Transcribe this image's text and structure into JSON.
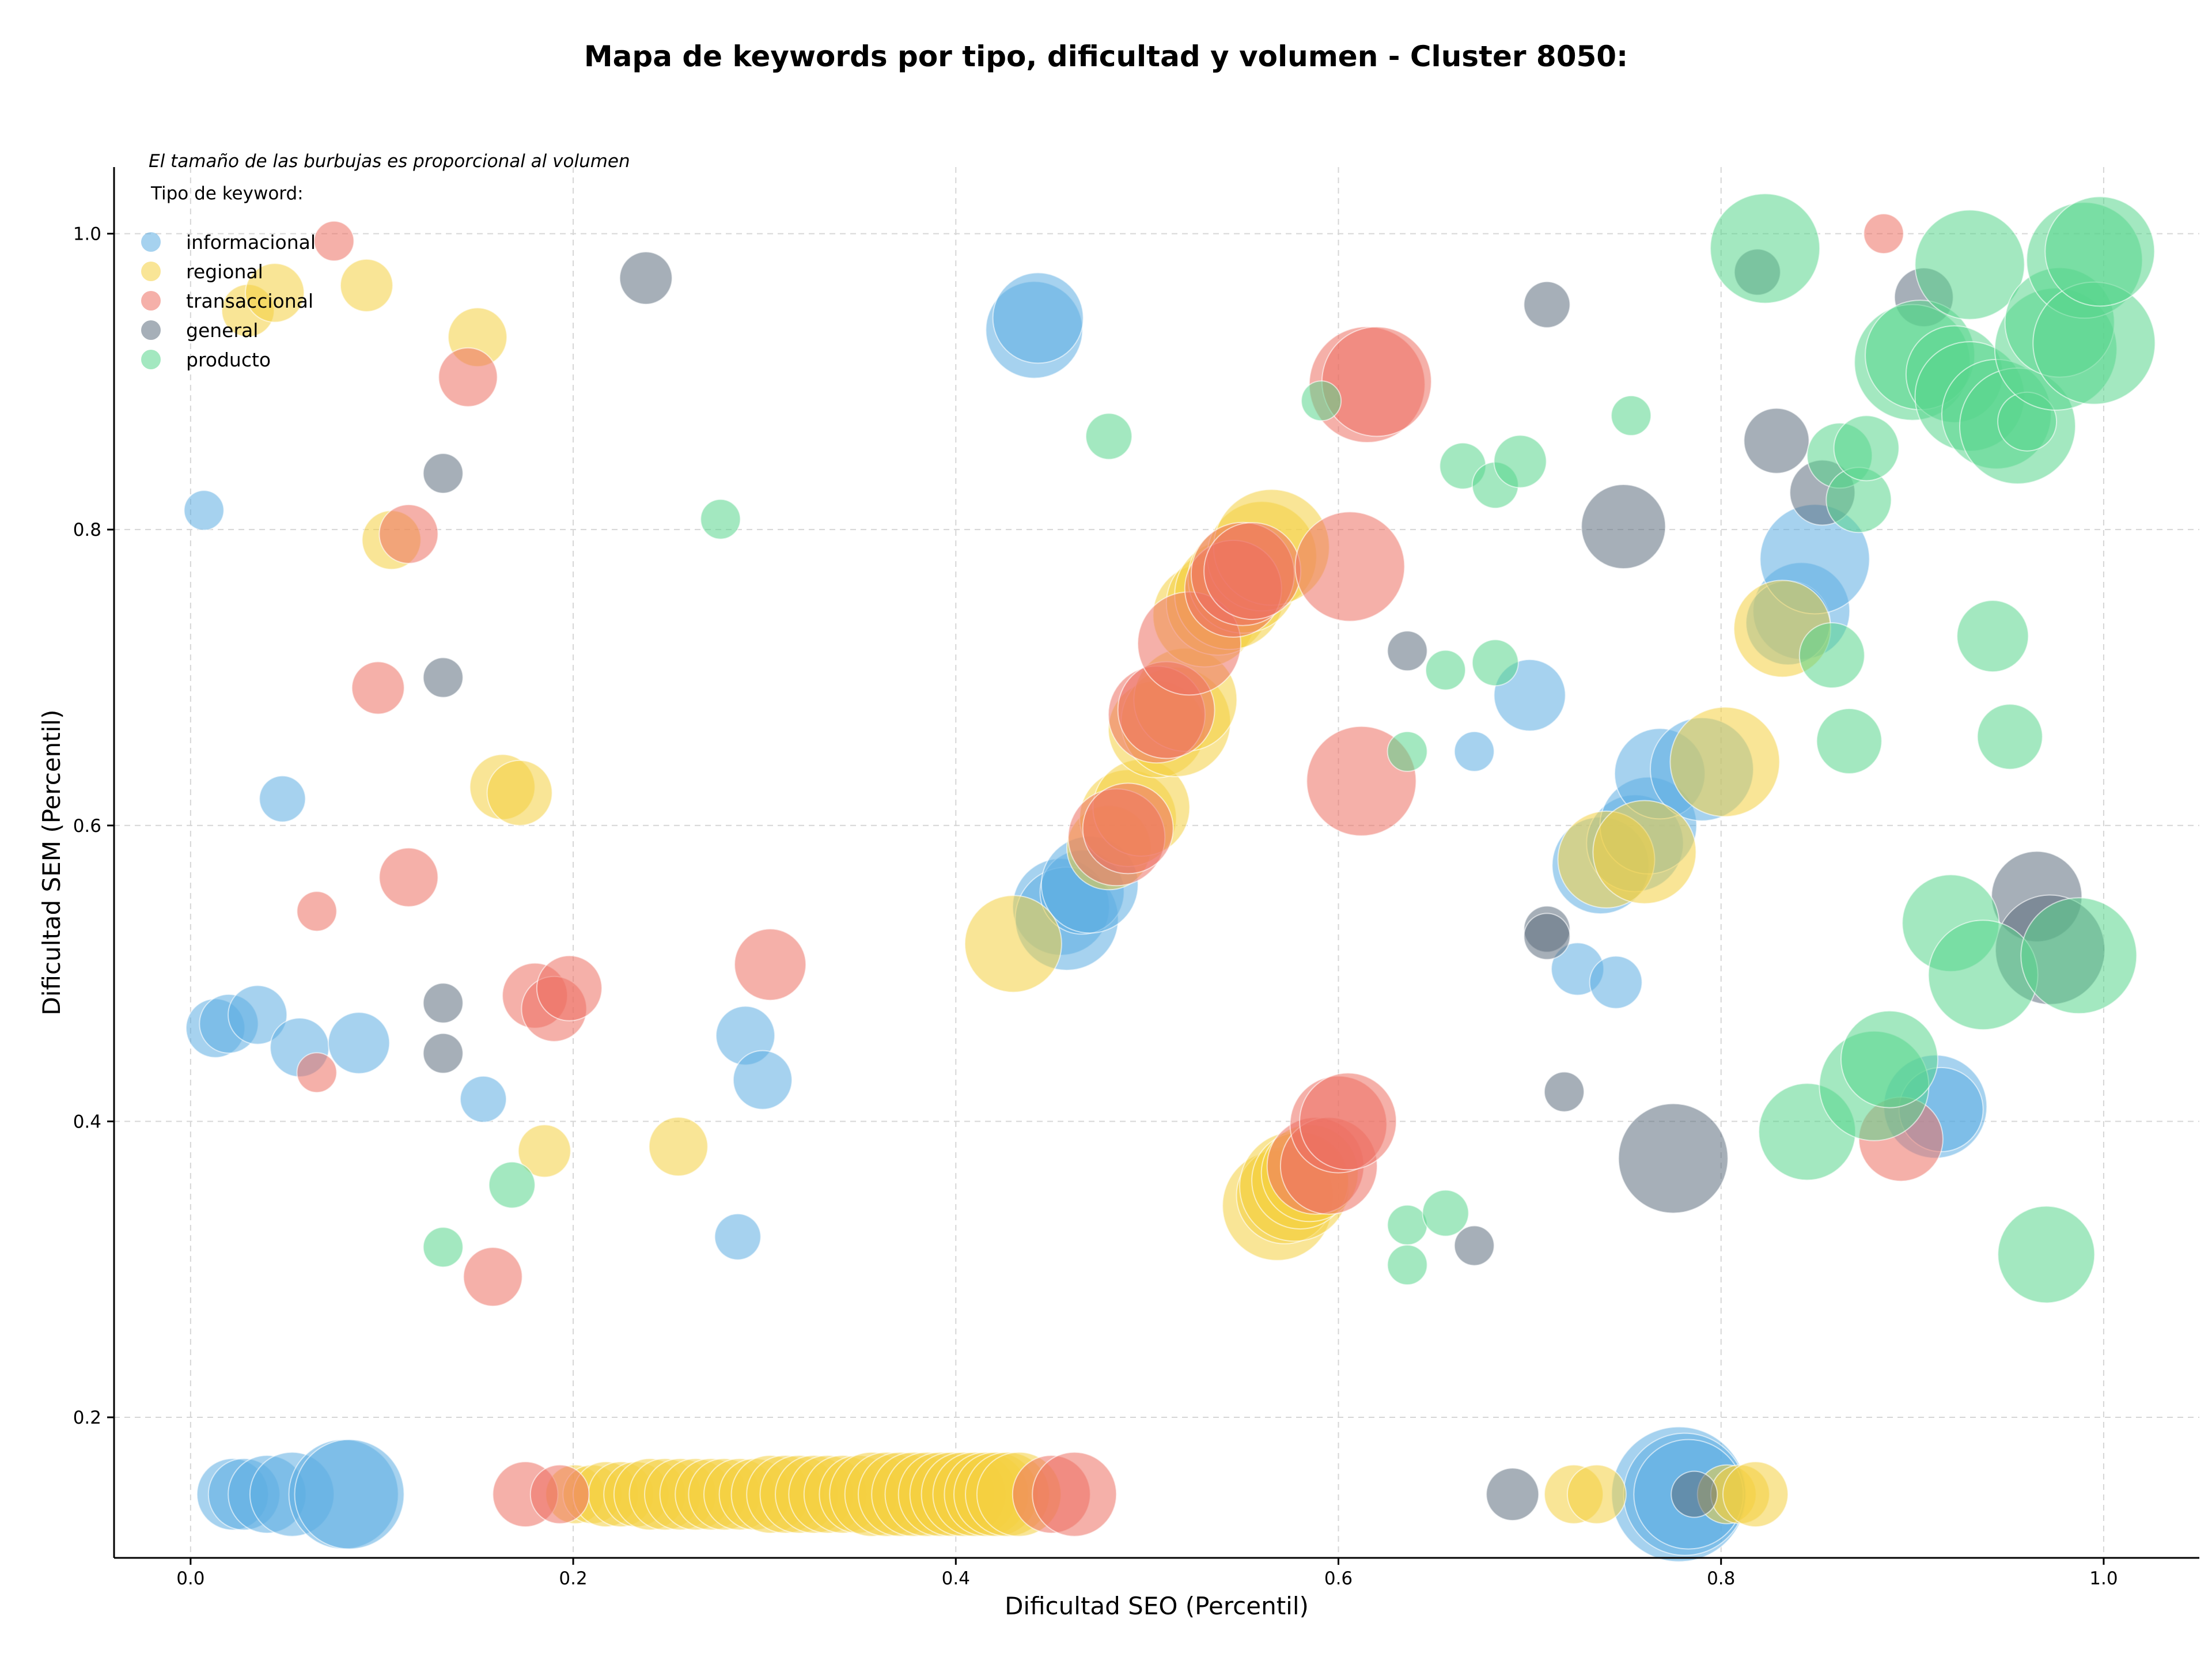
{
  "chart_data": {
    "type": "scatter",
    "title": "Mapa de keywords por tipo, dificultad y volumen - Cluster 8050:",
    "xlabel": "Dificultad SEO (Percentil)",
    "ylabel": "Dificultad SEM (Percentil)",
    "note": "El tamaño de las burbujas es proporcional al volumen",
    "legend_title": "Tipo de keyword:",
    "legend_position": "top-left",
    "grid": true,
    "xlim": [
      -0.04,
      1.05
    ],
    "ylim": [
      0.105,
      1.045
    ],
    "x_ticks": [
      {
        "value": 0.0,
        "label": "0.0"
      },
      {
        "value": 0.2,
        "label": "0.2"
      },
      {
        "value": 0.4,
        "label": "0.4"
      },
      {
        "value": 0.6,
        "label": "0.6"
      },
      {
        "value": 0.8,
        "label": "0.8"
      },
      {
        "value": 1.0,
        "label": "1.0"
      }
    ],
    "y_ticks": [
      {
        "value": 0.2,
        "label": "0.2"
      },
      {
        "value": 0.4,
        "label": "0.4"
      },
      {
        "value": 0.6,
        "label": "0.6"
      },
      {
        "value": 0.8,
        "label": "0.8"
      },
      {
        "value": 1.0,
        "label": "1.0"
      }
    ],
    "series": [
      {
        "name": "informacional",
        "color": "#5dade2",
        "points": [
          [
            0.007,
            0.813,
            1.5
          ],
          [
            0.013,
            0.463,
            3
          ],
          [
            0.02,
            0.466,
            3
          ],
          [
            0.035,
            0.472,
            3
          ],
          [
            0.057,
            0.45,
            3
          ],
          [
            0.048,
            0.618,
            2
          ],
          [
            0.088,
            0.453,
            3.2
          ],
          [
            0.153,
            0.415,
            2
          ],
          [
            0.29,
            0.458,
            3
          ],
          [
            0.299,
            0.428,
            3
          ],
          [
            0.286,
            0.322,
            2
          ],
          [
            0.022,
            0.148,
            4
          ],
          [
            0.028,
            0.148,
            4
          ],
          [
            0.04,
            0.148,
            4.5
          ],
          [
            0.053,
            0.148,
            5
          ],
          [
            0.08,
            0.148,
            7
          ],
          [
            0.083,
            0.148,
            7
          ],
          [
            0.441,
            0.935,
            6
          ],
          [
            0.443,
            0.943,
            5.5
          ],
          [
            0.455,
            0.545,
            6
          ],
          [
            0.458,
            0.537,
            6.5
          ],
          [
            0.466,
            0.555,
            5
          ],
          [
            0.47,
            0.56,
            6
          ],
          [
            0.7,
            0.688,
            4
          ],
          [
            0.671,
            0.65,
            1.5
          ],
          [
            0.725,
            0.503,
            2.5
          ],
          [
            0.745,
            0.494,
            2.5
          ],
          [
            0.737,
            0.573,
            6
          ],
          [
            0.755,
            0.588,
            6
          ],
          [
            0.762,
            0.6,
            6
          ],
          [
            0.768,
            0.635,
            5.5
          ],
          [
            0.79,
            0.638,
            6.5
          ],
          [
            0.842,
            0.745,
            6
          ],
          [
            0.835,
            0.737,
            5
          ],
          [
            0.849,
            0.78,
            7
          ],
          [
            0.912,
            0.41,
            6.5
          ],
          [
            0.915,
            0.408,
            5
          ],
          [
            0.778,
            0.148,
            9
          ],
          [
            0.781,
            0.148,
            8
          ],
          [
            0.783,
            0.148,
            7
          ]
        ]
      },
      {
        "name": "regional",
        "color": "#f4d03f",
        "points": [
          [
            0.03,
            0.948,
            2.5
          ],
          [
            0.044,
            0.96,
            3
          ],
          [
            0.092,
            0.965,
            2.5
          ],
          [
            0.15,
            0.93,
            3
          ],
          [
            0.105,
            0.793,
            3
          ],
          [
            0.163,
            0.626,
            3.5
          ],
          [
            0.172,
            0.622,
            3.5
          ],
          [
            0.185,
            0.38,
            2.5
          ],
          [
            0.255,
            0.383,
            3
          ],
          [
            0.43,
            0.52,
            6
          ],
          [
            0.48,
            0.585,
            5
          ],
          [
            0.49,
            0.605,
            6
          ],
          [
            0.497,
            0.612,
            6
          ],
          [
            0.505,
            0.665,
            6
          ],
          [
            0.515,
            0.67,
            7
          ],
          [
            0.52,
            0.685,
            6.5
          ],
          [
            0.53,
            0.742,
            6.5
          ],
          [
            0.537,
            0.75,
            6.5
          ],
          [
            0.543,
            0.756,
            7
          ],
          [
            0.55,
            0.767,
            7
          ],
          [
            0.56,
            0.782,
            7
          ],
          [
            0.565,
            0.788,
            7.5
          ],
          [
            0.568,
            0.343,
            7
          ],
          [
            0.572,
            0.35,
            6
          ],
          [
            0.577,
            0.356,
            7
          ],
          [
            0.58,
            0.36,
            6
          ],
          [
            0.585,
            0.365,
            6
          ],
          [
            0.74,
            0.577,
            6
          ],
          [
            0.76,
            0.582,
            6.5
          ],
          [
            0.802,
            0.643,
            7
          ],
          [
            0.832,
            0.733,
            6
          ],
          [
            0.201,
            0.148,
            3
          ],
          [
            0.21,
            0.148,
            3
          ],
          [
            0.217,
            0.148,
            3.5
          ],
          [
            0.225,
            0.148,
            3.5
          ],
          [
            0.233,
            0.148,
            3.5
          ],
          [
            0.24,
            0.148,
            4
          ],
          [
            0.248,
            0.148,
            4
          ],
          [
            0.256,
            0.148,
            4
          ],
          [
            0.264,
            0.148,
            4
          ],
          [
            0.272,
            0.148,
            4
          ],
          [
            0.279,
            0.148,
            4
          ],
          [
            0.287,
            0.148,
            4
          ],
          [
            0.295,
            0.148,
            4
          ],
          [
            0.303,
            0.148,
            4.5
          ],
          [
            0.311,
            0.148,
            4.5
          ],
          [
            0.318,
            0.148,
            4.5
          ],
          [
            0.326,
            0.148,
            4.5
          ],
          [
            0.333,
            0.148,
            4.5
          ],
          [
            0.341,
            0.148,
            4.5
          ],
          [
            0.349,
            0.148,
            4.5
          ],
          [
            0.356,
            0.148,
            5
          ],
          [
            0.364,
            0.148,
            5
          ],
          [
            0.371,
            0.148,
            5
          ],
          [
            0.378,
            0.148,
            5
          ],
          [
            0.385,
            0.148,
            5
          ],
          [
            0.392,
            0.148,
            5
          ],
          [
            0.398,
            0.148,
            5
          ],
          [
            0.404,
            0.148,
            5
          ],
          [
            0.41,
            0.148,
            5
          ],
          [
            0.416,
            0.148,
            5
          ],
          [
            0.421,
            0.148,
            5
          ],
          [
            0.427,
            0.148,
            5
          ],
          [
            0.433,
            0.148,
            5
          ],
          [
            0.723,
            0.148,
            3
          ],
          [
            0.735,
            0.148,
            3
          ],
          [
            0.803,
            0.148,
            3
          ],
          [
            0.81,
            0.148,
            3
          ],
          [
            0.818,
            0.148,
            3.5
          ]
        ]
      },
      {
        "name": "transaccional",
        "color": "#ec7063",
        "points": [
          [
            0.075,
            0.995,
            1.5
          ],
          [
            0.145,
            0.903,
            3
          ],
          [
            0.114,
            0.797,
            3
          ],
          [
            0.098,
            0.693,
            2.5
          ],
          [
            0.114,
            0.565,
            3
          ],
          [
            0.066,
            0.542,
            1.5
          ],
          [
            0.066,
            0.433,
            1.5
          ],
          [
            0.18,
            0.485,
            3.5
          ],
          [
            0.19,
            0.476,
            3.5
          ],
          [
            0.198,
            0.49,
            3.5
          ],
          [
            0.303,
            0.506,
            4
          ],
          [
            0.158,
            0.295,
            3
          ],
          [
            0.484,
            0.592,
            6
          ],
          [
            0.49,
            0.598,
            5.5
          ],
          [
            0.505,
            0.675,
            6
          ],
          [
            0.51,
            0.678,
            6
          ],
          [
            0.522,
            0.723,
            6.5
          ],
          [
            0.545,
            0.76,
            6
          ],
          [
            0.55,
            0.77,
            6.5
          ],
          [
            0.555,
            0.772,
            6
          ],
          [
            0.606,
            0.775,
            7
          ],
          [
            0.612,
            0.63,
            7
          ],
          [
            0.615,
            0.898,
            7.5
          ],
          [
            0.62,
            0.9,
            7
          ],
          [
            0.588,
            0.37,
            6
          ],
          [
            0.595,
            0.37,
            6
          ],
          [
            0.6,
            0.398,
            6
          ],
          [
            0.605,
            0.4,
            6
          ],
          [
            0.885,
            1.0,
            1.5
          ],
          [
            0.894,
            0.388,
            5
          ],
          [
            0.175,
            0.148,
            3.5
          ],
          [
            0.193,
            0.148,
            3
          ],
          [
            0.45,
            0.148,
            4.5
          ],
          [
            0.462,
            0.148,
            5
          ]
        ]
      },
      {
        "name": "general",
        "color": "#5d6d7e",
        "points": [
          [
            0.238,
            0.97,
            2.5
          ],
          [
            0.132,
            0.838,
            1.5
          ],
          [
            0.132,
            0.7,
            1.5
          ],
          [
            0.132,
            0.48,
            1.5
          ],
          [
            0.132,
            0.446,
            1.5
          ],
          [
            0.636,
            0.718,
            1.5
          ],
          [
            0.671,
            0.316,
            1.5
          ],
          [
            0.709,
            0.952,
            2
          ],
          [
            0.709,
            0.53,
            2
          ],
          [
            0.709,
            0.525,
            2
          ],
          [
            0.718,
            0.42,
            1.5
          ],
          [
            0.749,
            0.802,
            5
          ],
          [
            0.775,
            0.375,
            7
          ],
          [
            0.819,
            0.974,
            2
          ],
          [
            0.829,
            0.86,
            3.5
          ],
          [
            0.853,
            0.825,
            3.5
          ],
          [
            0.906,
            0.957,
            3
          ],
          [
            0.965,
            0.552,
            5.5
          ],
          [
            0.972,
            0.516,
            7
          ],
          [
            0.691,
            0.148,
            2.5
          ],
          [
            0.786,
            0.148,
            2
          ]
        ]
      },
      {
        "name": "producto",
        "color": "#58d68d",
        "points": [
          [
            0.277,
            0.807,
            1.5
          ],
          [
            0.168,
            0.357,
            2
          ],
          [
            0.132,
            0.315,
            1.5
          ],
          [
            0.48,
            0.863,
            2
          ],
          [
            0.591,
            0.887,
            1.5
          ],
          [
            0.636,
            0.65,
            1.5
          ],
          [
            0.656,
            0.705,
            1.5
          ],
          [
            0.665,
            0.843,
            2
          ],
          [
            0.682,
            0.71,
            2
          ],
          [
            0.682,
            0.83,
            2
          ],
          [
            0.695,
            0.846,
            2.5
          ],
          [
            0.753,
            0.877,
            1.5
          ],
          [
            0.636,
            0.33,
            1.5
          ],
          [
            0.656,
            0.338,
            2
          ],
          [
            0.636,
            0.303,
            1.5
          ],
          [
            0.823,
            0.99,
            7
          ],
          [
            0.858,
            0.715,
            3.5
          ],
          [
            0.862,
            0.85,
            3.5
          ],
          [
            0.867,
            0.657,
            3.5
          ],
          [
            0.872,
            0.82,
            3.5
          ],
          [
            0.876,
            0.855,
            3.5
          ],
          [
            0.845,
            0.393,
            6
          ],
          [
            0.88,
            0.424,
            7
          ],
          [
            0.888,
            0.442,
            6
          ],
          [
            0.9,
            0.913,
            7.5
          ],
          [
            0.904,
            0.918,
            7
          ],
          [
            0.92,
            0.534,
            6
          ],
          [
            0.922,
            0.905,
            6
          ],
          [
            0.93,
            0.979,
            7
          ],
          [
            0.93,
            0.89,
            7
          ],
          [
            0.937,
            0.499,
            7
          ],
          [
            0.942,
            0.728,
            4
          ],
          [
            0.944,
            0.878,
            7
          ],
          [
            0.951,
            0.66,
            3.5
          ],
          [
            0.955,
            0.87,
            7.5
          ],
          [
            0.96,
            0.873,
            3
          ],
          [
            0.97,
            0.31,
            6
          ],
          [
            0.975,
            0.922,
            8
          ],
          [
            0.977,
            0.94,
            7
          ],
          [
            0.987,
            0.512,
            7.5
          ],
          [
            0.99,
            0.982,
            7.5
          ],
          [
            0.995,
            0.926,
            8
          ],
          [
            0.998,
            0.988,
            7
          ]
        ]
      }
    ]
  }
}
